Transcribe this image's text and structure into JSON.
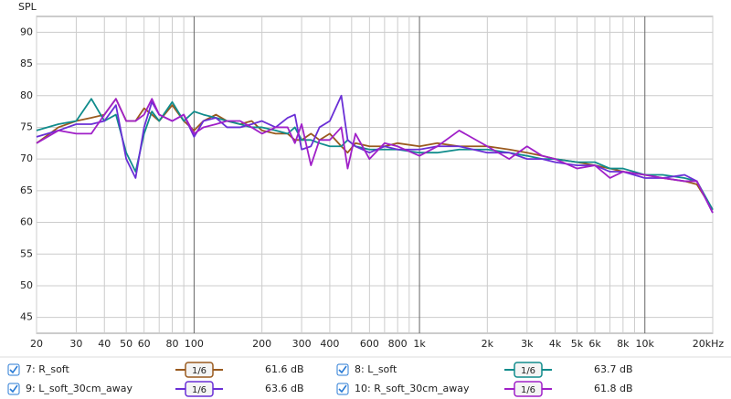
{
  "chart_data": {
    "type": "line",
    "y_label": "SPL",
    "xscale": "log",
    "grid": true,
    "xlim": [
      20,
      20000
    ],
    "ylim": [
      42.5,
      92.5
    ],
    "yticks": [
      45,
      50,
      55,
      60,
      65,
      70,
      75,
      80,
      85,
      90
    ],
    "xticks": [
      20,
      30,
      40,
      50,
      60,
      80,
      100,
      200,
      300,
      400,
      600,
      800,
      {
        "value": 1000,
        "label": "1k"
      },
      {
        "value": 2000,
        "label": "2k"
      },
      {
        "value": 3000,
        "label": "3k"
      },
      {
        "value": 4000,
        "label": "4k"
      },
      {
        "value": 5000,
        "label": "5k"
      },
      {
        "value": 6000,
        "label": "6k"
      },
      {
        "value": 8000,
        "label": "8k"
      },
      {
        "value": 10000,
        "label": "10k"
      },
      {
        "value": 20000,
        "label": "20kHz"
      }
    ],
    "xgrid_minor": [
      70,
      90,
      500,
      700,
      900,
      7000,
      9000
    ],
    "x": [
      20,
      25,
      30,
      35,
      40,
      45,
      50,
      55,
      60,
      65,
      70,
      80,
      90,
      100,
      110,
      125,
      140,
      160,
      180,
      200,
      230,
      260,
      280,
      300,
      330,
      360,
      400,
      450,
      480,
      520,
      600,
      700,
      800,
      1000,
      1200,
      1500,
      2000,
      2500,
      3000,
      3500,
      4000,
      5000,
      6000,
      7000,
      8000,
      10000,
      12000,
      15000,
      17000,
      20000
    ],
    "series": [
      {
        "name": "7: R_soft",
        "color": "#9a5a1e",
        "smoothing": "1/6",
        "level": "61.6 dB",
        "values": [
          72.5,
          75,
          76,
          76.5,
          77,
          79.5,
          76,
          76,
          78,
          77,
          76,
          78.5,
          76,
          74.5,
          76,
          77,
          76,
          75.5,
          76,
          74.5,
          74,
          74,
          73,
          73,
          74,
          73,
          74,
          72,
          71,
          72.5,
          72,
          72,
          72.5,
          72,
          72.5,
          72,
          72,
          71.5,
          71,
          70.5,
          70,
          69.5,
          69,
          68.5,
          68,
          67.5,
          67,
          66.5,
          66,
          62
        ]
      },
      {
        "name": "8: L_soft",
        "color": "#108c8c",
        "smoothing": "1/6",
        "level": "63.7 dB",
        "values": [
          74.5,
          75.5,
          76,
          79.5,
          76,
          77,
          71,
          68,
          74,
          77.5,
          76,
          79,
          76,
          77.5,
          77,
          76.5,
          76,
          75.5,
          75,
          75,
          74.5,
          74,
          75,
          73,
          73,
          72.5,
          72,
          72,
          73,
          72,
          71.5,
          71.5,
          71.5,
          71,
          71,
          71.5,
          71.5,
          71,
          70.5,
          70,
          70,
          69.5,
          69.5,
          68.5,
          68.5,
          67.5,
          67.5,
          67,
          66.5,
          62
        ]
      },
      {
        "name": "9: L_soft_30cm_away",
        "color": "#6a2fd6",
        "smoothing": "1/6",
        "level": "63.6 dB",
        "values": [
          73.5,
          74.5,
          75.5,
          75.5,
          76,
          78.5,
          70,
          67,
          75,
          79,
          77,
          76,
          77,
          73.5,
          76,
          76.5,
          75,
          75,
          75.5,
          76,
          75,
          76.5,
          77,
          71.5,
          72,
          75,
          76,
          80,
          73,
          72,
          71,
          72,
          71.5,
          71.5,
          72,
          72,
          71,
          71,
          70,
          70,
          69.5,
          69,
          69,
          68,
          68,
          67,
          67,
          67.5,
          66.5,
          61.5
        ]
      },
      {
        "name": "10: R_soft_30cm_away",
        "color": "#a020c8",
        "smoothing": "1/6",
        "level": "61.8 dB",
        "values": [
          72.5,
          74.5,
          74,
          74,
          77,
          79.5,
          76,
          76,
          77,
          79.5,
          77,
          76,
          77,
          74,
          75,
          75.5,
          76,
          76,
          75,
          74,
          75,
          75,
          72.5,
          75.5,
          69,
          73,
          73,
          75,
          68.5,
          74,
          70,
          72.5,
          72,
          70.5,
          72,
          74.5,
          72,
          70,
          72,
          70.5,
          70,
          68.5,
          69,
          67,
          68,
          67.5,
          67,
          66.5,
          66.5,
          61.5
        ]
      }
    ]
  }
}
